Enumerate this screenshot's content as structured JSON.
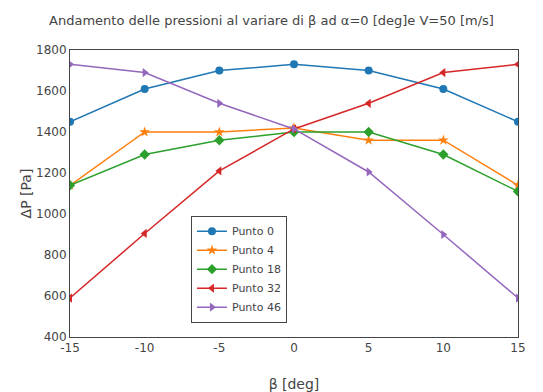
{
  "chart_data": {
    "type": "line",
    "title": "Andamento delle pressioni al variare di β ad α=0 [deg]e V=50 [m/s]",
    "xlabel": "β [deg]",
    "ylabel": "ΔP [Pa]",
    "x": [
      -15,
      -10,
      -5,
      0,
      5,
      10,
      15
    ],
    "series": [
      {
        "name": "Punto 0",
        "marker": "circle",
        "values": [
          1450,
          1610,
          1700,
          1730,
          1700,
          1610,
          1450
        ]
      },
      {
        "name": "Punto 4",
        "marker": "star",
        "values": [
          1140,
          1400,
          1400,
          1420,
          1360,
          1360,
          1140
        ]
      },
      {
        "name": "Punto 18",
        "marker": "diamond",
        "values": [
          1140,
          1290,
          1360,
          1400,
          1400,
          1290,
          1110
        ]
      },
      {
        "name": "Punto 32",
        "marker": "triangle-left",
        "values": [
          590,
          905,
          1210,
          1415,
          1540,
          1690,
          1730
        ]
      },
      {
        "name": "Punto 46",
        "marker": "triangle-right",
        "values": [
          1730,
          1690,
          1540,
          1415,
          1205,
          900,
          590
        ]
      }
    ],
    "xlim": [
      -15,
      15
    ],
    "xticks": [
      -15,
      -10,
      -5,
      0,
      5,
      10,
      15
    ],
    "ylim": [
      400,
      1800
    ],
    "yticks": [
      400,
      600,
      800,
      1000,
      1200,
      1400,
      1600,
      1800
    ],
    "grid": false,
    "legend": "lower left"
  }
}
